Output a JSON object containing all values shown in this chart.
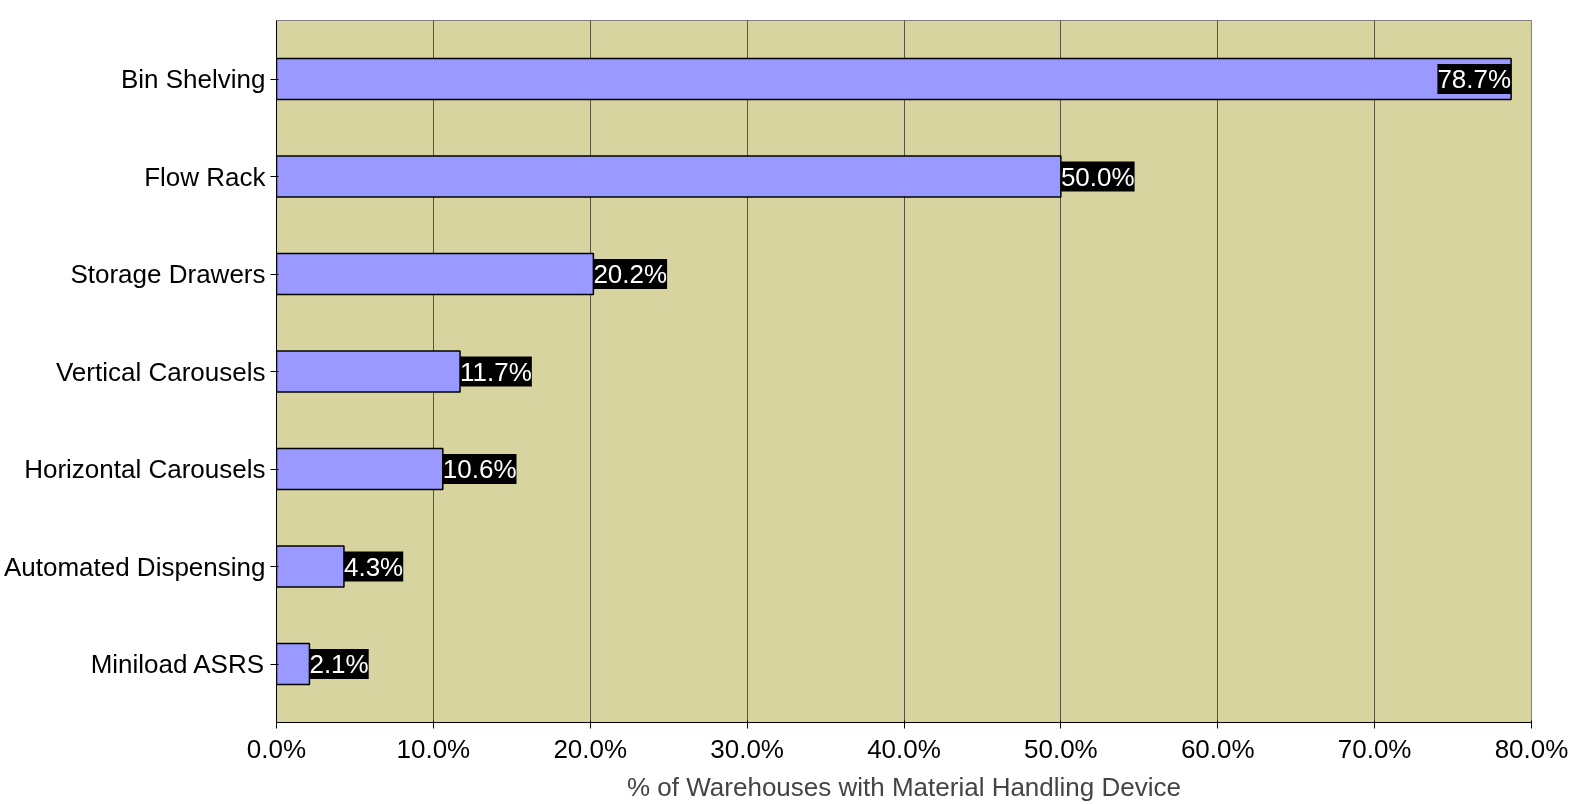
{
  "chart_data": {
    "type": "bar",
    "orientation": "horizontal",
    "xlabel": "% of Warehouses with Material Handling Device",
    "categories": [
      "Bin Shelving",
      "Flow Rack",
      "Storage Drawers",
      "Vertical Carousels",
      "Horizontal Carousels",
      "Automated Dispensing",
      "Miniload ASRS"
    ],
    "values": [
      78.7,
      50.0,
      20.2,
      11.7,
      10.6,
      4.3,
      2.1
    ],
    "value_labels": [
      "78.7%",
      "50.0%",
      "20.2%",
      "11.7%",
      "10.6%",
      "4.3%",
      "2.1%"
    ],
    "color": "#9999ff",
    "xlim": [
      0,
      80
    ],
    "xticks": [
      {
        "value": 0,
        "label": "0.0%"
      },
      {
        "value": 10,
        "label": "10.0%"
      },
      {
        "value": 20,
        "label": "20.0%"
      },
      {
        "value": 30,
        "label": "30.0%"
      },
      {
        "value": 40,
        "label": "40.0%"
      },
      {
        "value": 50,
        "label": "50.0%"
      },
      {
        "value": 60,
        "label": "60.0%"
      },
      {
        "value": 70,
        "label": "70.0%"
      },
      {
        "value": 80,
        "label": "80.0%"
      }
    ],
    "grid": "x"
  }
}
